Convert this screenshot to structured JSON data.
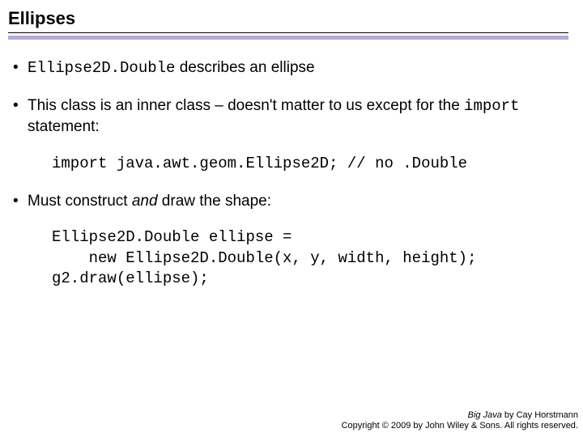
{
  "title": "Ellipses",
  "colors": {
    "rule": "#b8a8d8",
    "text": "#000000",
    "background": "#ffffff"
  },
  "bullets": {
    "b1": {
      "code": "Ellipse2D.Double",
      "rest": " describes an ellipse"
    },
    "b2": {
      "pre": "This class is an inner class – doesn't matter to us except for the ",
      "code": "import",
      "post": " statement:"
    },
    "b3": {
      "pre": "Must construct ",
      "italic": "and",
      "post": " draw the shape:"
    }
  },
  "code1": "import java.awt.geom.Ellipse2D; // no .Double",
  "code2": "Ellipse2D.Double ellipse = \n    new Ellipse2D.Double(x, y, width, height);\ng2.draw(ellipse);",
  "footer": {
    "line1_italic": "Big Java",
    "line1_rest": " by Cay Horstmann",
    "line2": "Copyright © 2009 by John Wiley & Sons. All rights reserved."
  },
  "typography": {
    "title_fontsize": 22,
    "body_fontsize": 19,
    "code_fontsize": 19,
    "footer_fontsize": 11
  }
}
